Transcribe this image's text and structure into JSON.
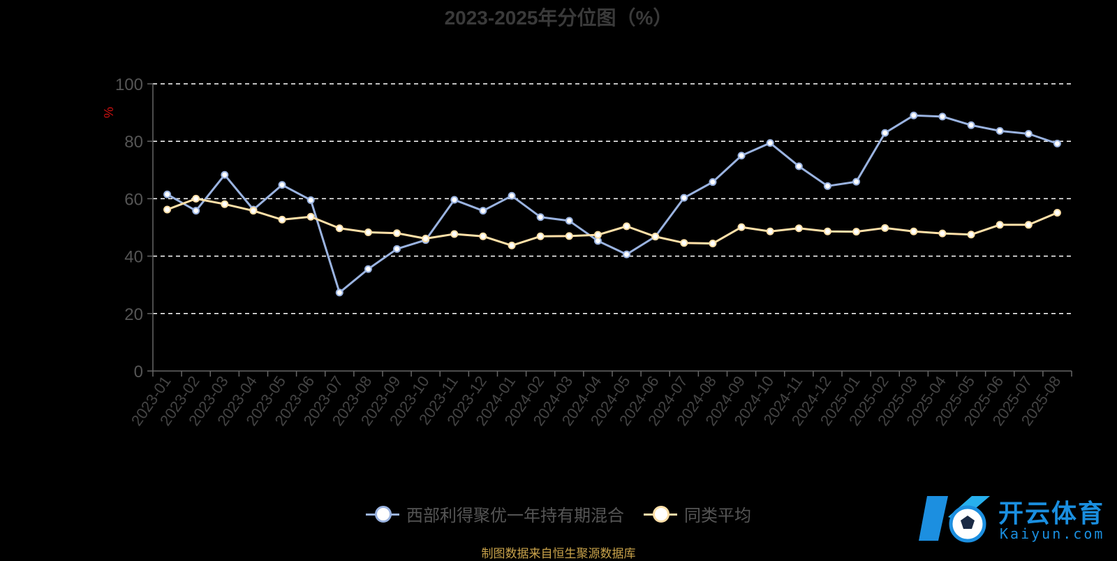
{
  "title": "2023-2025年分位图（%）",
  "source": "制图数据来自恒生聚源数据库",
  "watermark": {
    "text": "开云体育",
    "sub": "Kaiyun.com"
  },
  "chart_data": {
    "type": "line",
    "ylabel": "%",
    "ylim": [
      0,
      100
    ],
    "yticks": [
      0,
      20,
      40,
      60,
      80,
      100
    ],
    "grid": true,
    "legend_position": "bottom-center",
    "categories": [
      "2023-01",
      "2023-02",
      "2023-03",
      "2023-04",
      "2023-05",
      "2023-06",
      "2023-07",
      "2023-08",
      "2023-09",
      "2023-10",
      "2023-11",
      "2023-12",
      "2024-01",
      "2024-02",
      "2024-03",
      "2024-04",
      "2024-05",
      "2024-06",
      "2024-07",
      "2024-08",
      "2024-09",
      "2024-10",
      "2024-11",
      "2024-12",
      "2025-01",
      "2025-02",
      "2025-03",
      "2025-04",
      "2025-05",
      "2025-06",
      "2025-07",
      "2025-08"
    ],
    "series": [
      {
        "name": "西部利得聚优一年持有期混合",
        "color": "#9ab3e0",
        "values": [
          61.5,
          55.8,
          68.3,
          56.2,
          64.8,
          59.5,
          27.3,
          35.5,
          42.5,
          45.6,
          59.6,
          55.8,
          61.0,
          53.6,
          52.3,
          45.3,
          40.6,
          46.8,
          60.3,
          65.8,
          75.0,
          79.4,
          71.3,
          64.4,
          65.9,
          82.9,
          89.0,
          88.6,
          85.6,
          83.6,
          82.6,
          79.2
        ]
      },
      {
        "name": "同类平均",
        "color": "#ffe0a8",
        "values": [
          56.2,
          60.0,
          58.1,
          55.8,
          52.7,
          53.7,
          49.7,
          48.3,
          48.0,
          46.1,
          47.7,
          46.9,
          43.7,
          46.9,
          47.0,
          47.4,
          50.4,
          46.8,
          44.6,
          44.4,
          50.1,
          48.6,
          49.7,
          48.6,
          48.5,
          49.8,
          48.6,
          47.9,
          47.5,
          50.9,
          50.9,
          55.1
        ]
      }
    ]
  }
}
